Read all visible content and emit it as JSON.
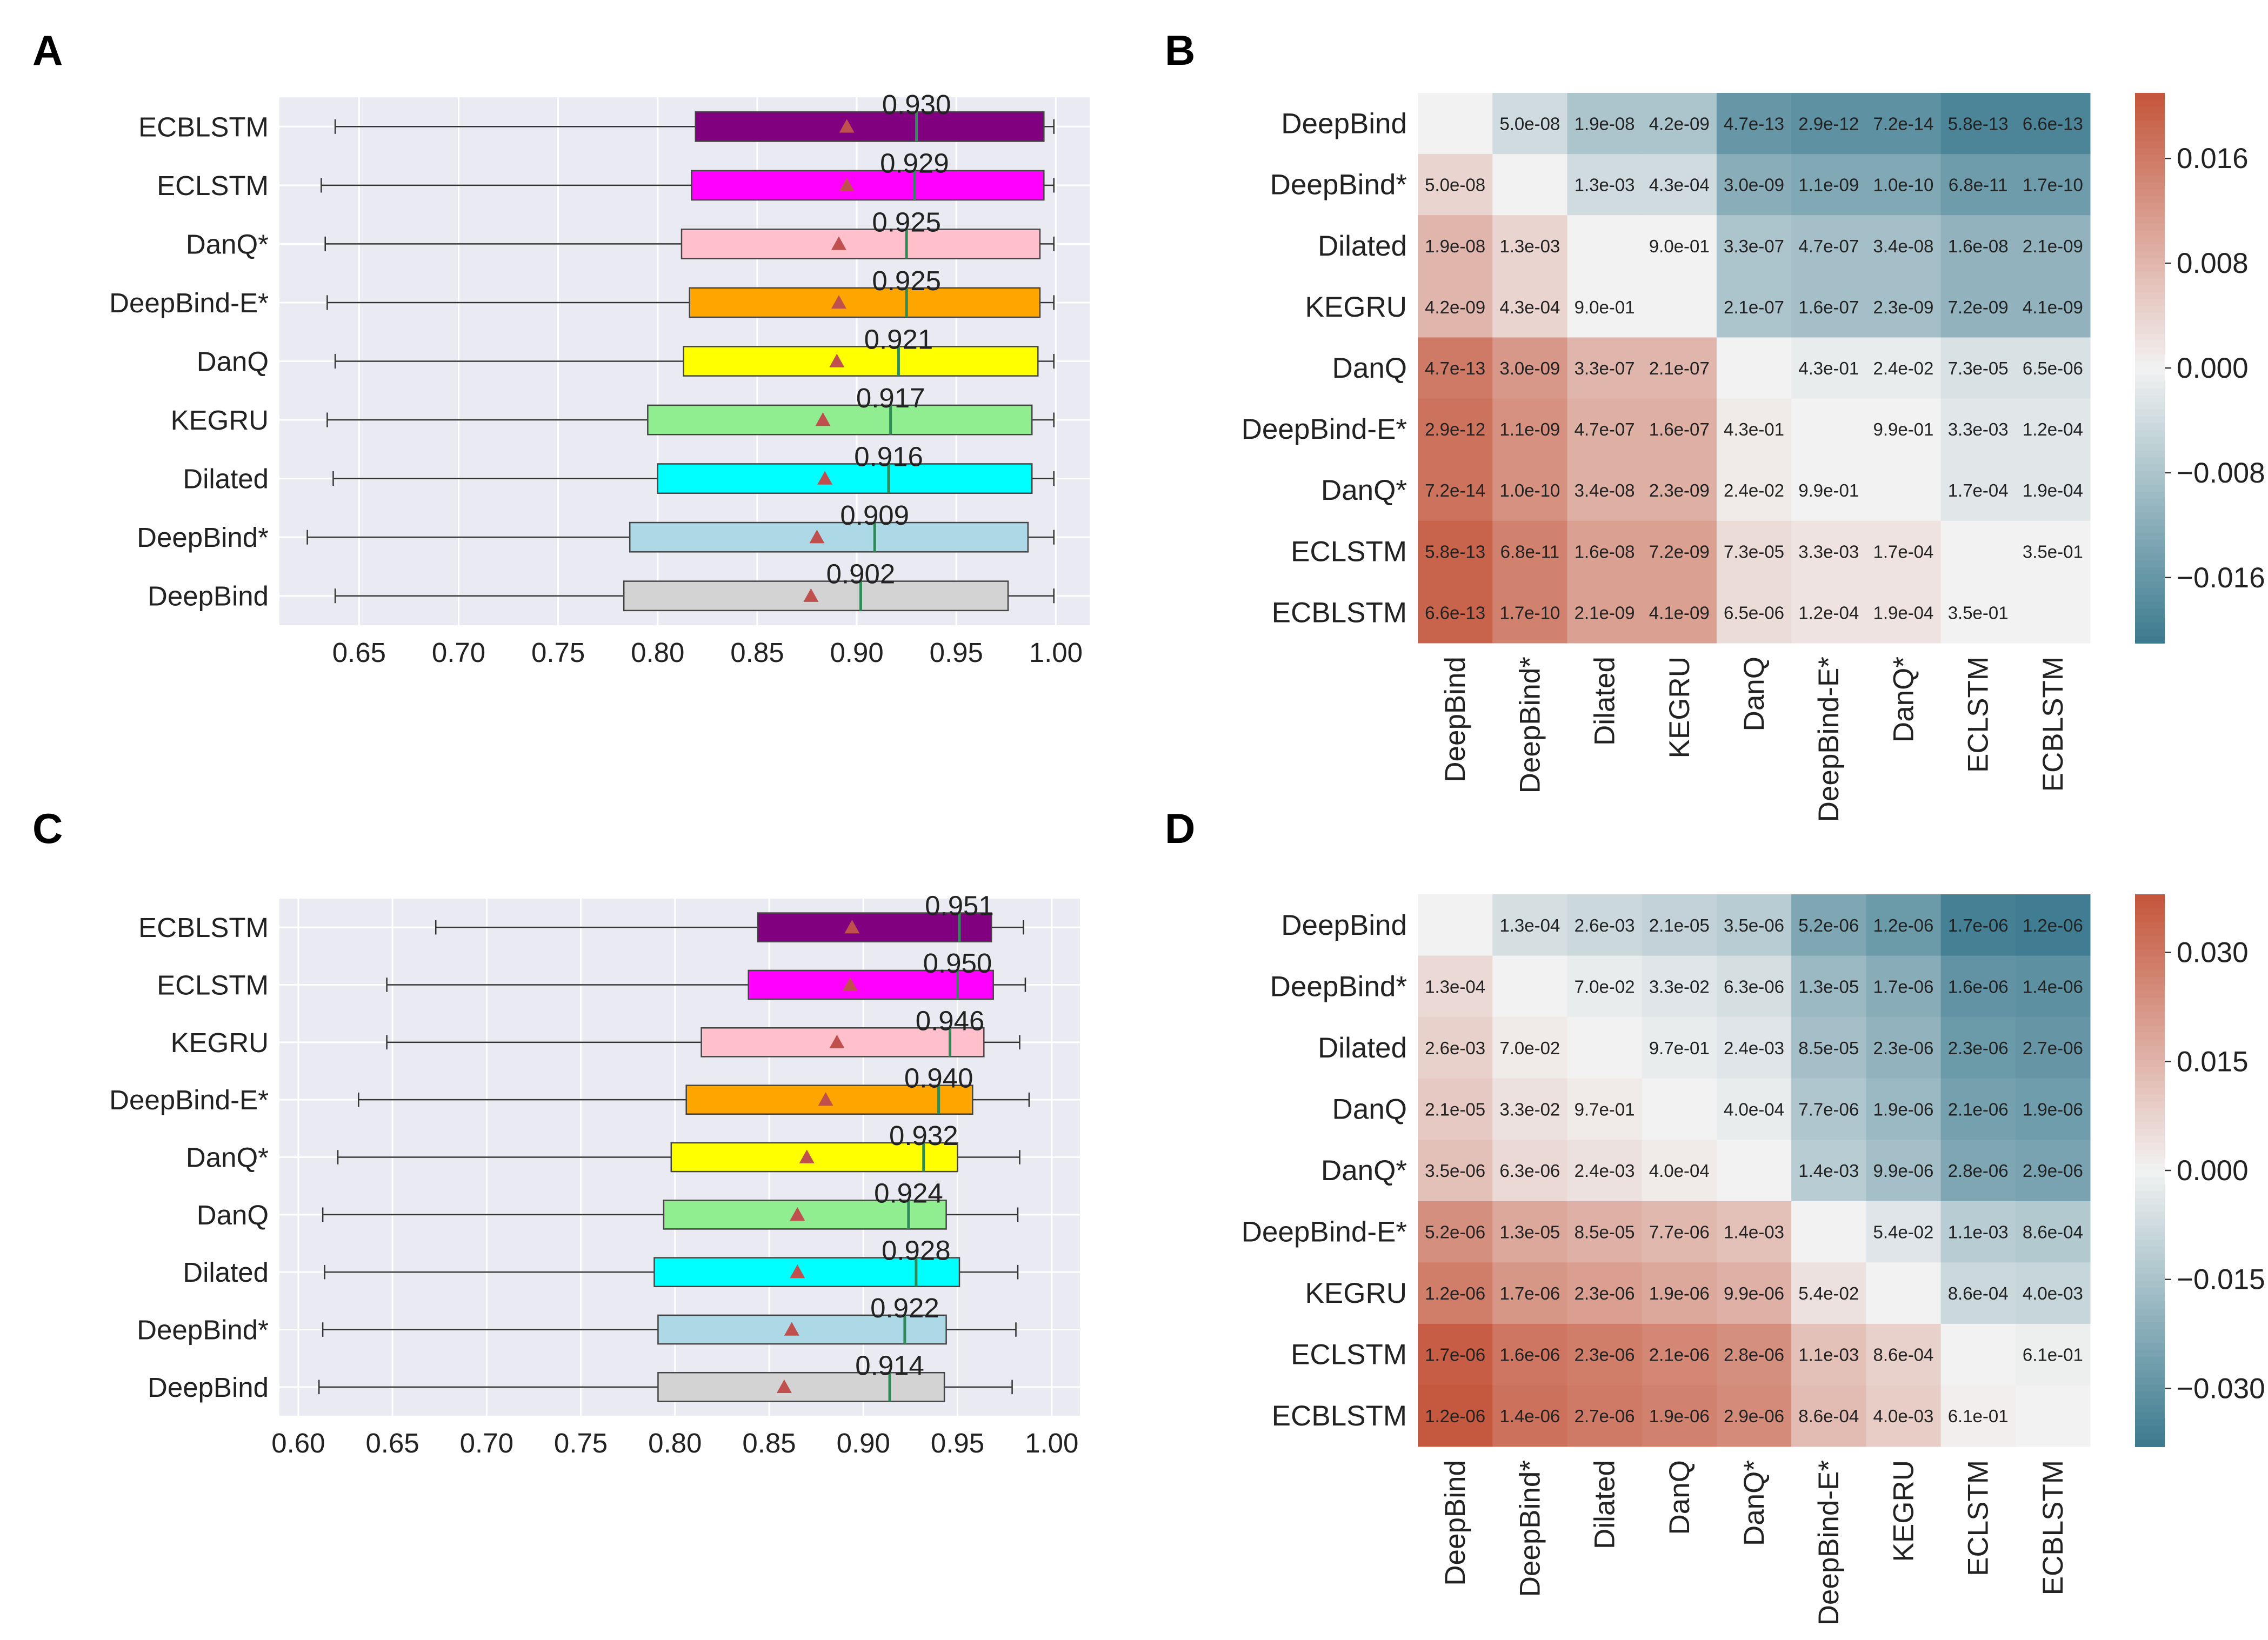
{
  "panels": [
    {
      "letter": "A",
      "chart": 0
    },
    {
      "letter": "B",
      "chart": 1
    },
    {
      "letter": "C",
      "chart": 2
    },
    {
      "letter": "D",
      "chart": 3
    }
  ],
  "colors": {
    "boxes": [
      "#800080",
      "#ff00ff",
      "#ffc0cb",
      "#ffa500",
      "#ffff00",
      "#90ee90",
      "#00ffff",
      "#add8e6",
      "#d3d3d3"
    ],
    "median_line": "#2e8b57",
    "mean_marker": "#c0504d",
    "plot_bg": "#eaeaf2",
    "heat_low": "#3b7a8f",
    "heat_mid": "#f2f2f2",
    "heat_high": "#c4553a"
  },
  "chart_data": [
    {
      "type": "box",
      "orientation": "horizontal",
      "categories": [
        "ECBLSTM",
        "ECLSTM",
        "DanQ*",
        "DeepBind-E*",
        "DanQ",
        "KEGRU",
        "Dilated",
        "DeepBind*",
        "DeepBind"
      ],
      "median_labels": [
        "0.930",
        "0.929",
        "0.925",
        "0.925",
        "0.921",
        "0.917",
        "0.916",
        "0.909",
        "0.902"
      ],
      "boxes": [
        {
          "whislo": 0.638,
          "q1": 0.819,
          "med": 0.93,
          "q3": 0.994,
          "whishi": 0.999,
          "mean": 0.895
        },
        {
          "whislo": 0.631,
          "q1": 0.817,
          "med": 0.929,
          "q3": 0.994,
          "whishi": 0.999,
          "mean": 0.895
        },
        {
          "whislo": 0.633,
          "q1": 0.812,
          "med": 0.925,
          "q3": 0.992,
          "whishi": 0.999,
          "mean": 0.891
        },
        {
          "whislo": 0.634,
          "q1": 0.816,
          "med": 0.925,
          "q3": 0.992,
          "whishi": 0.999,
          "mean": 0.891
        },
        {
          "whislo": 0.638,
          "q1": 0.813,
          "med": 0.921,
          "q3": 0.991,
          "whishi": 0.999,
          "mean": 0.89
        },
        {
          "whislo": 0.634,
          "q1": 0.795,
          "med": 0.917,
          "q3": 0.988,
          "whishi": 0.999,
          "mean": 0.883
        },
        {
          "whislo": 0.637,
          "q1": 0.8,
          "med": 0.916,
          "q3": 0.988,
          "whishi": 0.999,
          "mean": 0.884
        },
        {
          "whislo": 0.624,
          "q1": 0.786,
          "med": 0.909,
          "q3": 0.986,
          "whishi": 0.999,
          "mean": 0.88
        },
        {
          "whislo": 0.638,
          "q1": 0.783,
          "med": 0.902,
          "q3": 0.976,
          "whishi": 0.999,
          "mean": 0.877
        }
      ],
      "xlim": [
        0.61,
        1.017
      ],
      "xticks": [
        "0.65",
        "0.70",
        "0.75",
        "0.80",
        "0.85",
        "0.90",
        "0.95",
        "1.00"
      ],
      "grid": true
    },
    {
      "type": "heatmap",
      "labels": [
        "DeepBind",
        "DeepBind*",
        "Dilated",
        "KEGRU",
        "DanQ",
        "DeepBind-E*",
        "DanQ*",
        "ECLSTM",
        "ECBLSTM"
      ],
      "matrix": [
        [
          0,
          -0.004,
          -0.008,
          -0.008,
          -0.016,
          -0.017,
          -0.017,
          -0.019,
          -0.019
        ],
        [
          0.004,
          0,
          -0.004,
          -0.004,
          -0.012,
          -0.013,
          -0.013,
          -0.015,
          -0.015
        ],
        [
          0.008,
          0.004,
          0,
          0,
          -0.008,
          -0.009,
          -0.009,
          -0.011,
          -0.011
        ],
        [
          0.008,
          0.004,
          0,
          0,
          -0.008,
          -0.009,
          -0.009,
          -0.011,
          -0.011
        ],
        [
          0.016,
          0.012,
          0.008,
          0.008,
          0,
          -0.001,
          -0.001,
          -0.003,
          -0.003
        ],
        [
          0.017,
          0.013,
          0.009,
          0.009,
          0.001,
          0,
          0,
          -0.002,
          -0.002
        ],
        [
          0.017,
          0.013,
          0.009,
          0.009,
          0.001,
          0,
          0,
          -0.002,
          -0.002
        ],
        [
          0.019,
          0.015,
          0.011,
          0.011,
          0.003,
          0.002,
          0.002,
          0,
          0
        ],
        [
          0.019,
          0.015,
          0.011,
          0.011,
          0.003,
          0.002,
          0.002,
          0,
          0
        ]
      ],
      "cell_labels": [
        [
          "",
          "5.0e-08",
          "1.9e-08",
          "4.2e-09",
          "4.7e-13",
          "2.9e-12",
          "7.2e-14",
          "5.8e-13",
          "6.6e-13"
        ],
        [
          "5.0e-08",
          "",
          "1.3e-03",
          "4.3e-04",
          "3.0e-09",
          "1.1e-09",
          "1.0e-10",
          "6.8e-11",
          "1.7e-10"
        ],
        [
          "1.9e-08",
          "1.3e-03",
          "",
          "9.0e-01",
          "3.3e-07",
          "4.7e-07",
          "3.4e-08",
          "1.6e-08",
          "2.1e-09"
        ],
        [
          "4.2e-09",
          "4.3e-04",
          "9.0e-01",
          "",
          "2.1e-07",
          "1.6e-07",
          "2.3e-09",
          "7.2e-09",
          "4.1e-09"
        ],
        [
          "4.7e-13",
          "3.0e-09",
          "3.3e-07",
          "2.1e-07",
          "",
          "4.3e-01",
          "2.4e-02",
          "7.3e-05",
          "6.5e-06"
        ],
        [
          "2.9e-12",
          "1.1e-09",
          "4.7e-07",
          "1.6e-07",
          "4.3e-01",
          "",
          "9.9e-01",
          "3.3e-03",
          "1.2e-04"
        ],
        [
          "7.2e-14",
          "1.0e-10",
          "3.4e-08",
          "2.3e-09",
          "2.4e-02",
          "9.9e-01",
          "",
          "1.7e-04",
          "1.9e-04"
        ],
        [
          "5.8e-13",
          "6.8e-11",
          "1.6e-08",
          "7.2e-09",
          "7.3e-05",
          "3.3e-03",
          "1.7e-04",
          "",
          "3.5e-01"
        ],
        [
          "6.6e-13",
          "1.7e-10",
          "2.1e-09",
          "4.1e-09",
          "6.5e-06",
          "1.2e-04",
          "1.9e-04",
          "3.5e-01",
          ""
        ]
      ],
      "vmin": -0.021,
      "vmax": 0.021,
      "colorbar_ticks": [
        "0.016",
        "0.008",
        "0.000",
        "−0.008",
        "−0.016"
      ],
      "colorbar_values": [
        0.016,
        0.008,
        0.0,
        -0.008,
        -0.016
      ]
    },
    {
      "type": "box",
      "orientation": "horizontal",
      "categories": [
        "ECBLSTM",
        "ECLSTM",
        "KEGRU",
        "DeepBind-E*",
        "DanQ*",
        "DanQ",
        "Dilated",
        "DeepBind*",
        "DeepBind"
      ],
      "median_labels": [
        "0.951",
        "0.950",
        "0.946",
        "0.940",
        "0.932",
        "0.924",
        "0.928",
        "0.922",
        "0.914"
      ],
      "boxes": [
        {
          "whislo": 0.673,
          "q1": 0.844,
          "med": 0.951,
          "q3": 0.968,
          "whishi": 0.985,
          "mean": 0.894
        },
        {
          "whislo": 0.647,
          "q1": 0.839,
          "med": 0.95,
          "q3": 0.969,
          "whishi": 0.986,
          "mean": 0.893
        },
        {
          "whislo": 0.647,
          "q1": 0.814,
          "med": 0.946,
          "q3": 0.964,
          "whishi": 0.983,
          "mean": 0.886
        },
        {
          "whislo": 0.632,
          "q1": 0.806,
          "med": 0.94,
          "q3": 0.958,
          "whishi": 0.988,
          "mean": 0.88
        },
        {
          "whislo": 0.621,
          "q1": 0.798,
          "med": 0.932,
          "q3": 0.95,
          "whishi": 0.983,
          "mean": 0.87
        },
        {
          "whislo": 0.613,
          "q1": 0.794,
          "med": 0.924,
          "q3": 0.944,
          "whishi": 0.982,
          "mean": 0.865
        },
        {
          "whislo": 0.614,
          "q1": 0.789,
          "med": 0.928,
          "q3": 0.951,
          "whishi": 0.982,
          "mean": 0.865
        },
        {
          "whislo": 0.613,
          "q1": 0.791,
          "med": 0.922,
          "q3": 0.944,
          "whishi": 0.981,
          "mean": 0.862
        },
        {
          "whislo": 0.611,
          "q1": 0.791,
          "med": 0.914,
          "q3": 0.943,
          "whishi": 0.979,
          "mean": 0.858
        }
      ],
      "xlim": [
        0.59,
        1.015
      ],
      "xticks": [
        "0.60",
        "0.65",
        "0.70",
        "0.75",
        "0.80",
        "0.85",
        "0.90",
        "0.95",
        "1.00"
      ],
      "grid": true
    },
    {
      "type": "heatmap",
      "labels": [
        "DeepBind",
        "DeepBind*",
        "Dilated",
        "DanQ",
        "DanQ*",
        "DeepBind-E*",
        "KEGRU",
        "ECLSTM",
        "ECBLSTM"
      ],
      "matrix": [
        [
          0,
          -0.006,
          -0.008,
          -0.01,
          -0.012,
          -0.024,
          -0.028,
          -0.036,
          -0.037
        ],
        [
          0.006,
          0,
          -0.002,
          -0.004,
          -0.006,
          -0.018,
          -0.022,
          -0.03,
          -0.031
        ],
        [
          0.008,
          0.002,
          0,
          -0.002,
          -0.004,
          -0.016,
          -0.02,
          -0.028,
          -0.029
        ],
        [
          0.01,
          0.004,
          0.002,
          0,
          -0.002,
          -0.014,
          -0.018,
          -0.026,
          -0.027
        ],
        [
          0.012,
          0.006,
          0.004,
          0.002,
          0,
          -0.012,
          -0.016,
          -0.024,
          -0.025
        ],
        [
          0.024,
          0.018,
          0.016,
          0.014,
          0.012,
          0,
          -0.004,
          -0.012,
          -0.013
        ],
        [
          0.028,
          0.022,
          0.02,
          0.018,
          0.016,
          0.004,
          0,
          -0.008,
          -0.009
        ],
        [
          0.036,
          0.03,
          0.028,
          0.026,
          0.024,
          0.012,
          0.008,
          0,
          -0.001
        ],
        [
          0.037,
          0.031,
          0.029,
          0.027,
          0.025,
          0.013,
          0.009,
          0.001,
          0
        ]
      ],
      "cell_labels": [
        [
          "",
          "1.3e-04",
          "2.6e-03",
          "2.1e-05",
          "3.5e-06",
          "5.2e-06",
          "1.2e-06",
          "1.7e-06",
          "1.2e-06"
        ],
        [
          "1.3e-04",
          "",
          "7.0e-02",
          "3.3e-02",
          "6.3e-06",
          "1.3e-05",
          "1.7e-06",
          "1.6e-06",
          "1.4e-06"
        ],
        [
          "2.6e-03",
          "7.0e-02",
          "",
          "9.7e-01",
          "2.4e-03",
          "8.5e-05",
          "2.3e-06",
          "2.3e-06",
          "2.7e-06"
        ],
        [
          "2.1e-05",
          "3.3e-02",
          "9.7e-01",
          "",
          "4.0e-04",
          "7.7e-06",
          "1.9e-06",
          "2.1e-06",
          "1.9e-06"
        ],
        [
          "3.5e-06",
          "6.3e-06",
          "2.4e-03",
          "4.0e-04",
          "",
          "1.4e-03",
          "9.9e-06",
          "2.8e-06",
          "2.9e-06"
        ],
        [
          "5.2e-06",
          "1.3e-05",
          "8.5e-05",
          "7.7e-06",
          "1.4e-03",
          "",
          "5.4e-02",
          "1.1e-03",
          "8.6e-04"
        ],
        [
          "1.2e-06",
          "1.7e-06",
          "2.3e-06",
          "1.9e-06",
          "9.9e-06",
          "5.4e-02",
          "",
          "8.6e-04",
          "4.0e-03"
        ],
        [
          "1.7e-06",
          "1.6e-06",
          "2.3e-06",
          "2.1e-06",
          "2.8e-06",
          "1.1e-03",
          "8.6e-04",
          "",
          "6.1e-01"
        ],
        [
          "1.2e-06",
          "1.4e-06",
          "2.7e-06",
          "1.9e-06",
          "2.9e-06",
          "8.6e-04",
          "4.0e-03",
          "6.1e-01",
          ""
        ]
      ],
      "vmin": -0.038,
      "vmax": 0.038,
      "colorbar_ticks": [
        "0.030",
        "0.015",
        "0.000",
        "−0.015",
        "−0.030"
      ],
      "colorbar_values": [
        0.03,
        0.015,
        0.0,
        -0.015,
        -0.03
      ]
    }
  ]
}
